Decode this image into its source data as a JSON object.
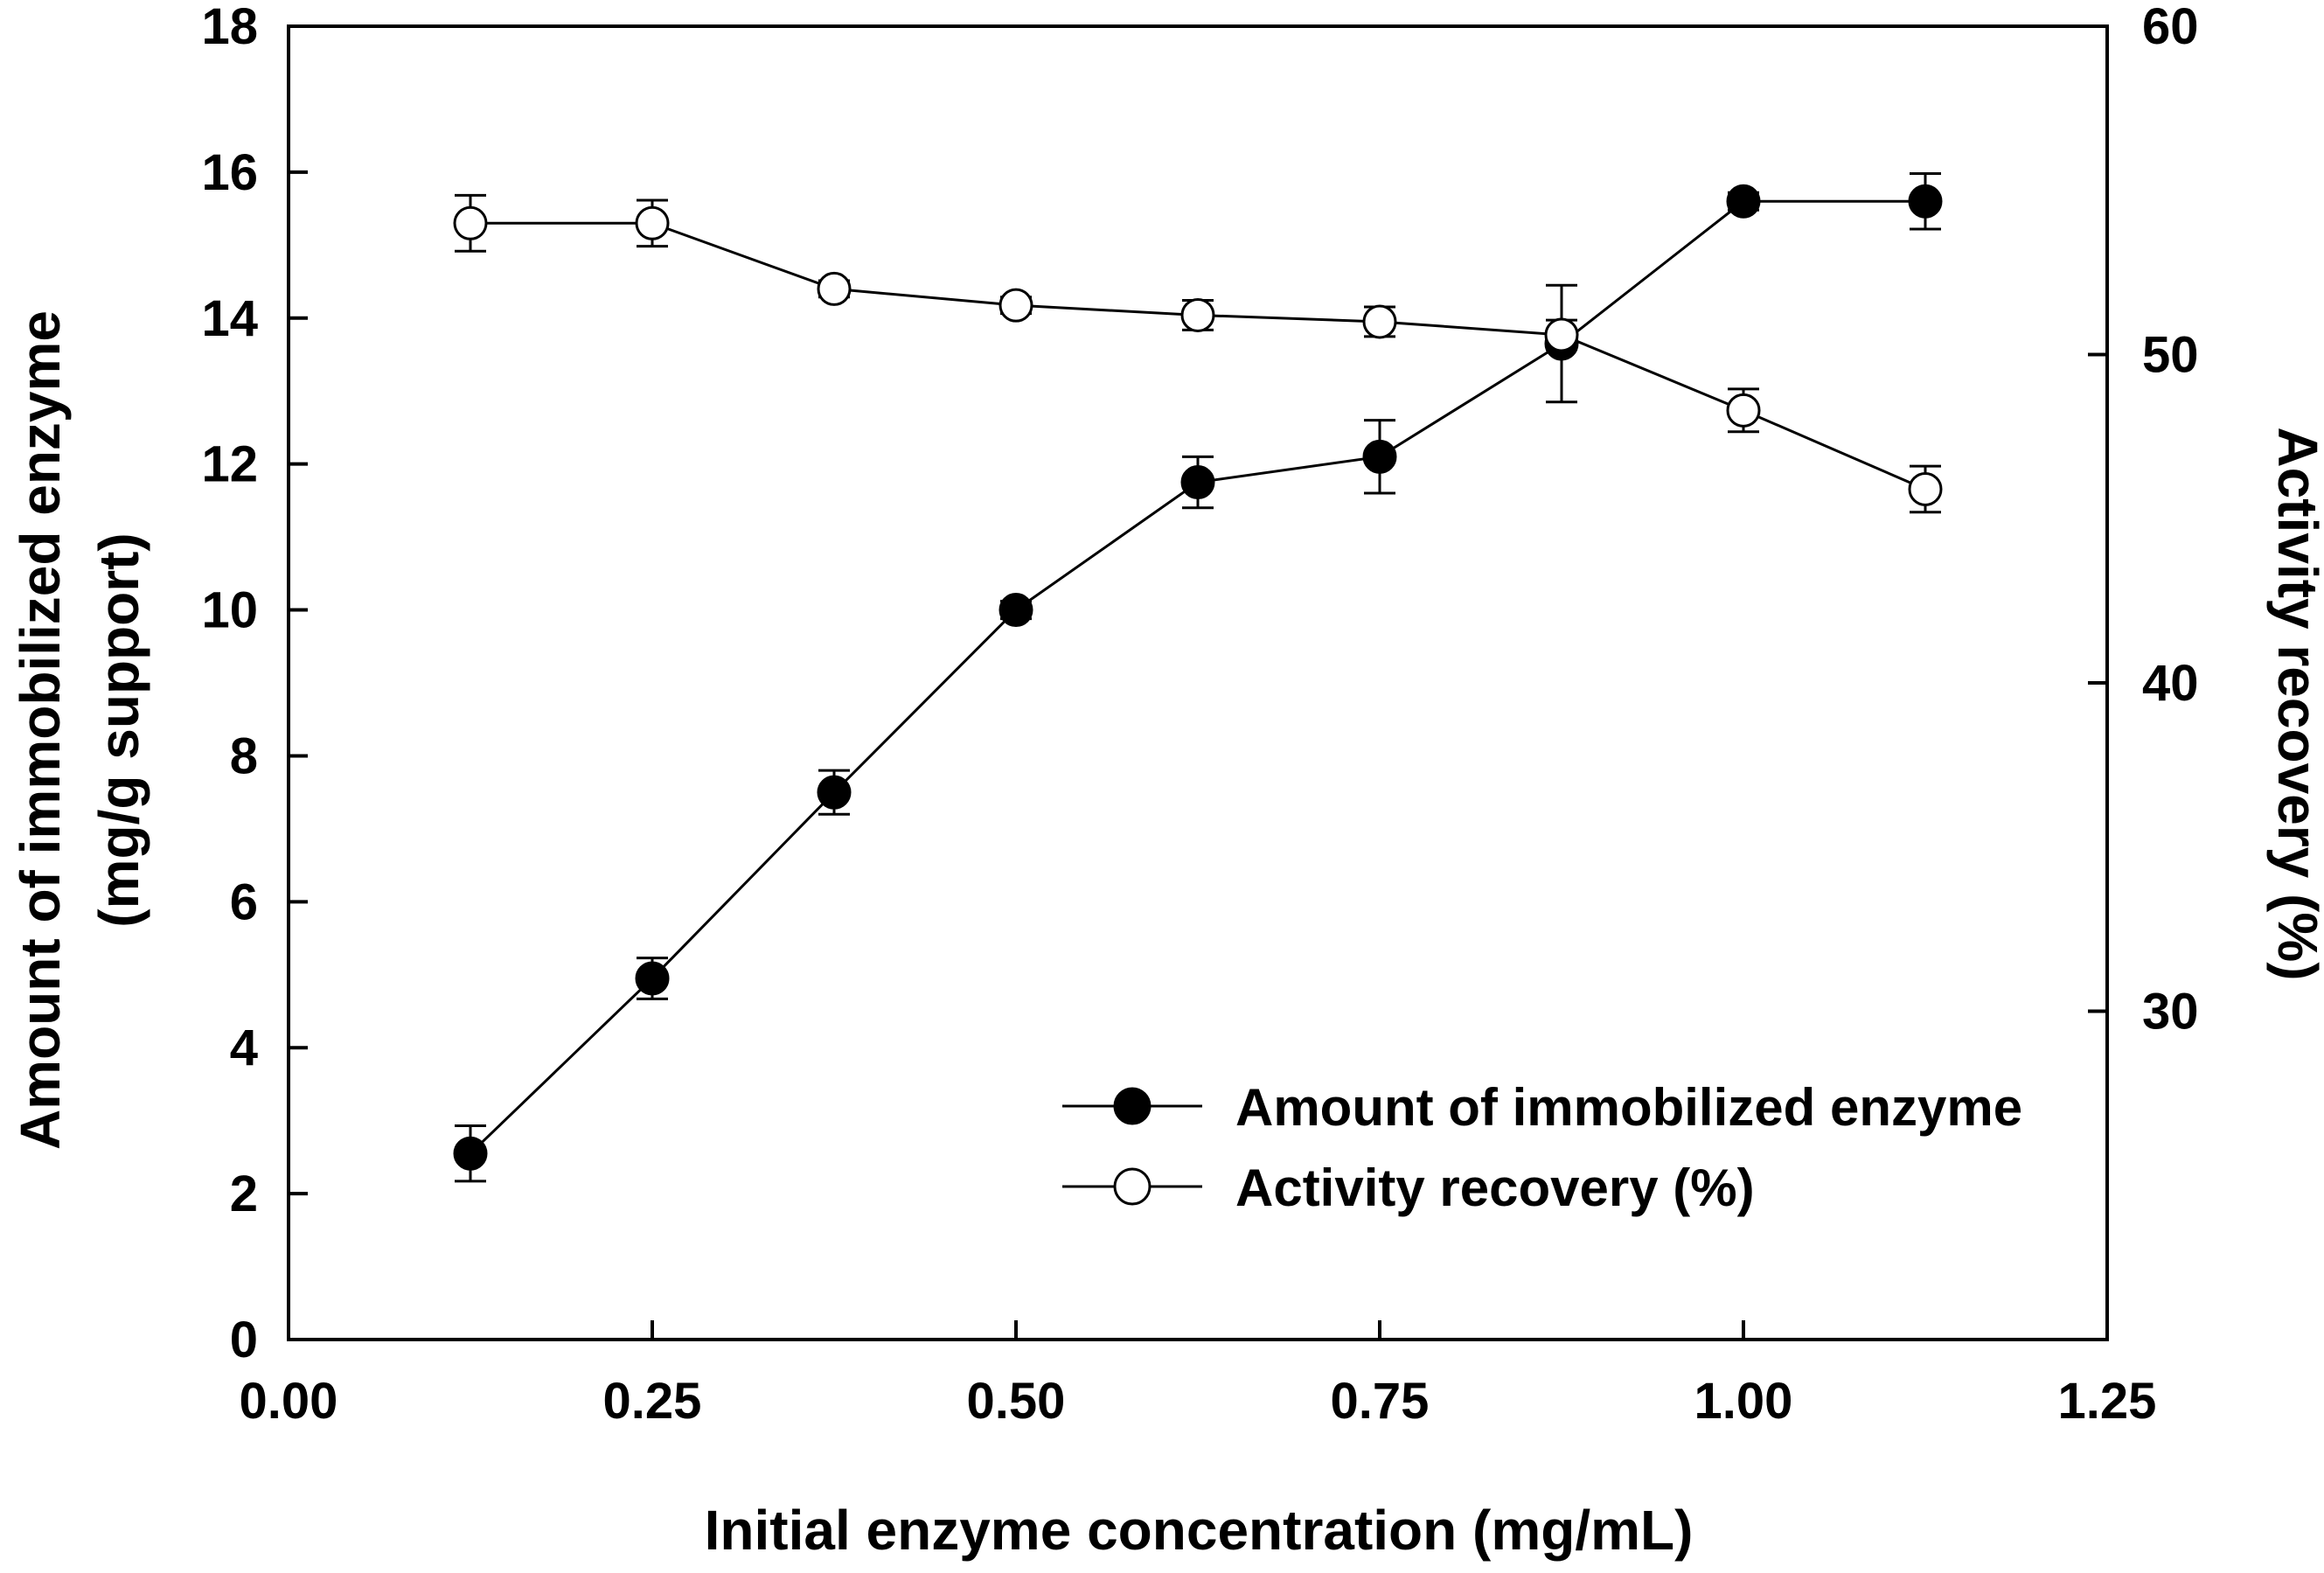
{
  "chart_data": {
    "type": "line",
    "title": "",
    "xlabel": "Initial enzyme concentration (mg/mL)",
    "ylabel_left_line1": "Amount of immobilized enzyme",
    "ylabel_left_line2": "(mg/g support)",
    "ylabel_right": "Activity recovery (%)",
    "xlim": [
      0,
      1.25
    ],
    "ylim_left": [
      0,
      18
    ],
    "ylim_right": [
      20,
      60
    ],
    "x_ticks": [
      "0.00",
      "0.25",
      "0.50",
      "0.75",
      "1.00",
      "1.25"
    ],
    "y_left_ticks": [
      "0",
      "2",
      "4",
      "6",
      "8",
      "10",
      "12",
      "14",
      "16",
      "18"
    ],
    "y_right_ticks": [
      "30",
      "40",
      "50",
      "60"
    ],
    "series": [
      {
        "name": "Amount of immobilized enzyme",
        "axis": "left",
        "marker": "filled-circle",
        "x": [
          0.125,
          0.25,
          0.375,
          0.5,
          0.625,
          0.75,
          0.875,
          1.0,
          1.125
        ],
        "values": [
          2.55,
          4.95,
          7.5,
          10.0,
          11.75,
          12.1,
          13.65,
          15.6,
          15.6
        ],
        "errors": [
          0.38,
          0.28,
          0.3,
          0.12,
          0.35,
          0.5,
          0.8,
          0.12,
          0.38
        ]
      },
      {
        "name": "Activity recovery (%)",
        "axis": "right",
        "marker": "open-circle",
        "x": [
          0.125,
          0.25,
          0.375,
          0.5,
          0.625,
          0.75,
          0.875,
          1.0,
          1.125
        ],
        "values": [
          54.0,
          54.0,
          52.0,
          51.5,
          51.2,
          51.0,
          50.6,
          48.3,
          45.9
        ],
        "errors": [
          0.85,
          0.7,
          0.25,
          0.25,
          0.45,
          0.45,
          0.45,
          0.65,
          0.7
        ]
      }
    ],
    "legend": {
      "position": "lower-right",
      "entries": [
        "Amount of immobilized enzyme",
        "Activity recovery (%)"
      ]
    },
    "grid": false
  }
}
